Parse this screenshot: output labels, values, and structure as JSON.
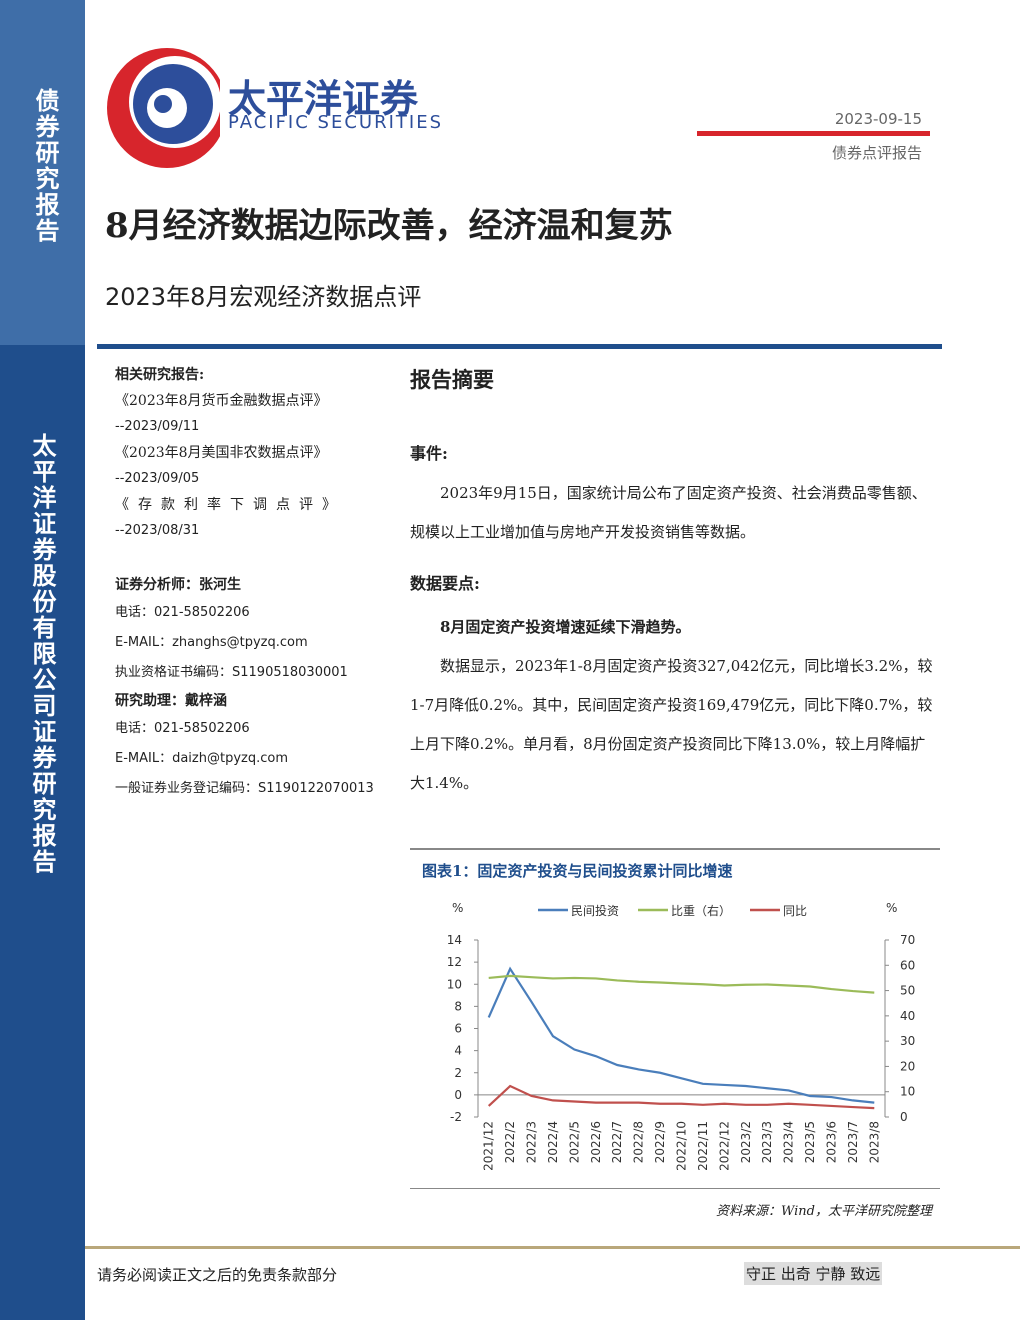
{
  "sidebar": {
    "top": "债券研究报告",
    "bottom": "太平洋证券股份有限公司证券研究报告"
  },
  "header": {
    "logo_cn": "太平洋证券",
    "logo_en": "PACIFIC SECURITIES",
    "date": "2023-09-15",
    "report_type": "债券点评报告",
    "title": "8月经济数据边际改善，经济温和复苏",
    "subtitle": "2023年8月宏观经济数据点评"
  },
  "related": {
    "heading": "相关研究报告:",
    "items": [
      {
        "title": "《2023年8月货币金融数据点评》",
        "date": "--2023/09/11"
      },
      {
        "title": "《2023年8月美国非农数据点评》",
        "date": "--2023/09/05"
      },
      {
        "title": "《存款利率下调点评》",
        "date": "--2023/08/31"
      }
    ]
  },
  "analyst": {
    "label": "证券分析师：张河生",
    "lines": [
      "电话：021-58502206",
      "E-MAIL：zhanghs@tpyzq.com",
      "执业资格证书编码：S1190518030001"
    ]
  },
  "assistant": {
    "label": "研究助理：戴梓涵",
    "lines": [
      "电话：021-58502206",
      "E-MAIL：daizh@tpyzq.com",
      "一般证券业务登记编码：S1190122070013"
    ]
  },
  "summary": {
    "heading": "报告摘要",
    "event_heading": "事件:",
    "event_text": "2023年9月15日，国家统计局公布了固定资产投资、社会消费品零售额、规模以上工业增加值与房地产开发投资销售等数据。",
    "points_heading": "数据要点:",
    "point_title": "8月固定资产投资增速延续下滑趋势。",
    "point_text": "数据显示，2023年1-8月固定资产投资327,042亿元，同比增长3.2%，较1-7月降低0.2%。其中，民间固定资产投资169,479亿元，同比下降0.7%，较上月下降0.2%。单月看，8月份固定资产投资同比下降13.0%，较上月降幅扩大1.4%。"
  },
  "chart_data": {
    "type": "line",
    "title": "图表1：固定资产投资与民间投资累计同比增速",
    "source": "资料来源：Wind，太平洋研究院整理",
    "y_unit": "%",
    "y2_unit": "%",
    "categories": [
      "2021/12",
      "2022/2",
      "2022/3",
      "2022/4",
      "2022/5",
      "2022/6",
      "2022/7",
      "2022/8",
      "2022/9",
      "2022/10",
      "2022/11",
      "2022/12",
      "2023/2",
      "2023/3",
      "2023/4",
      "2023/5",
      "2023/6",
      "2023/7",
      "2023/8"
    ],
    "series": [
      {
        "name": "民间投资",
        "color": "#4a7ebb",
        "values": [
          7.0,
          11.4,
          8.4,
          5.3,
          4.1,
          3.5,
          2.7,
          2.3,
          2.0,
          1.5,
          1.0,
          0.9,
          0.8,
          0.6,
          0.4,
          -0.1,
          -0.2,
          -0.5,
          -0.7
        ]
      },
      {
        "name": "比重（右）",
        "color": "#9bbb59",
        "axis": "y2",
        "values": [
          55,
          55.8,
          55.3,
          54.8,
          55,
          54.8,
          54,
          53.5,
          53.2,
          52.8,
          52.5,
          52,
          52.3,
          52.4,
          52,
          51.6,
          50.6,
          49.8,
          49.2
        ]
      },
      {
        "name": "同比",
        "color": "#c0504d",
        "values": [
          -1.0,
          0.8,
          -0.1,
          -0.5,
          -0.6,
          -0.7,
          -0.7,
          -0.7,
          -0.8,
          -0.8,
          -0.9,
          -0.8,
          -0.9,
          -0.9,
          -0.8,
          -0.9,
          -1.0,
          -1.1,
          -1.2
        ]
      }
    ],
    "ylim": [
      -2,
      14
    ],
    "yticks": [
      -2,
      0,
      2,
      4,
      6,
      8,
      10,
      12,
      14
    ],
    "y2lim": [
      0,
      70
    ],
    "y2ticks": [
      0,
      10,
      20,
      30,
      40,
      50,
      60,
      70
    ]
  },
  "footer": {
    "disclaimer": "请务必阅读正文之后的免责条款部分",
    "motto": "守正 出奇 宁静 致远"
  }
}
